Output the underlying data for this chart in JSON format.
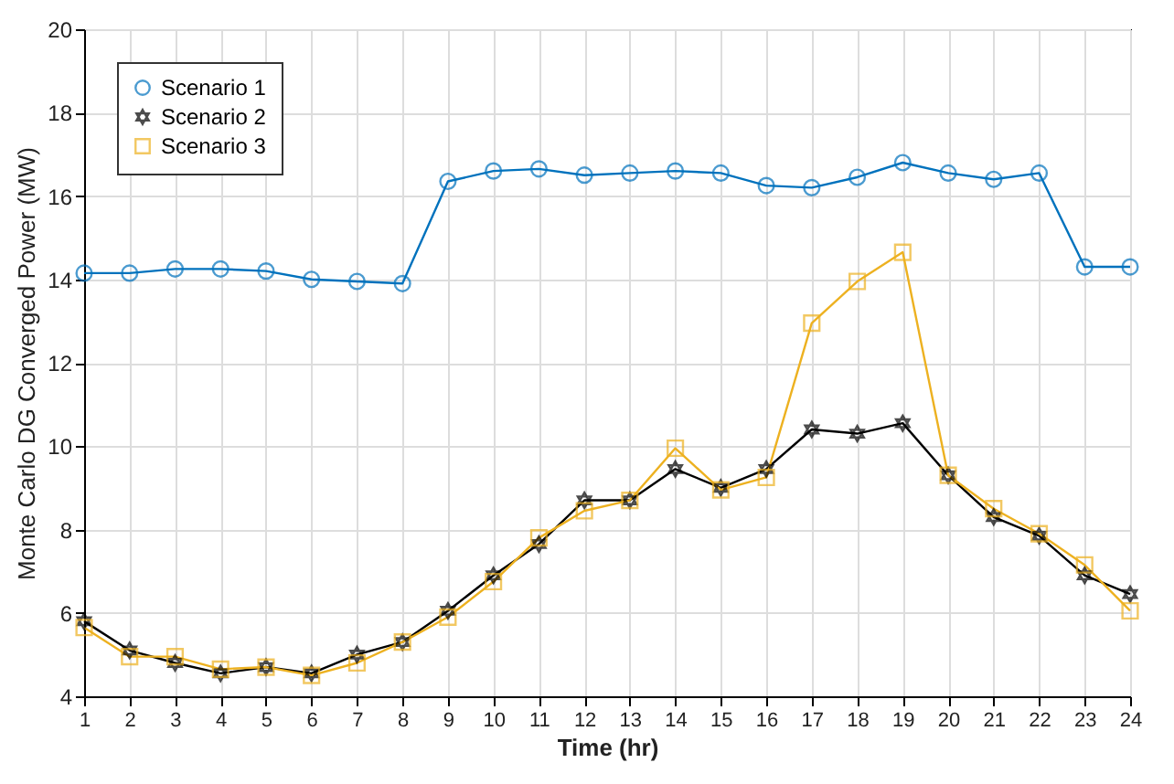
{
  "chart_data": {
    "type": "line",
    "xlabel": "Time (hr)",
    "ylabel": "Monte Carlo DG Converged Power (MW)",
    "x": [
      1,
      2,
      3,
      4,
      5,
      6,
      7,
      8,
      9,
      10,
      11,
      12,
      13,
      14,
      15,
      16,
      17,
      18,
      19,
      20,
      21,
      22,
      23,
      24
    ],
    "xlim": [
      1,
      24
    ],
    "xticks": [
      1,
      2,
      3,
      4,
      5,
      6,
      7,
      8,
      9,
      10,
      11,
      12,
      13,
      14,
      15,
      16,
      17,
      18,
      19,
      20,
      21,
      22,
      23,
      24
    ],
    "ylim": [
      4,
      20
    ],
    "yticks": [
      4,
      6,
      8,
      10,
      12,
      14,
      16,
      18,
      20
    ],
    "grid": true,
    "legend": "top left",
    "series": [
      {
        "name": "Scenario 1",
        "color": "#0072bd",
        "marker": "circle",
        "values": [
          14.15,
          14.15,
          14.25,
          14.25,
          14.2,
          14.0,
          13.95,
          13.9,
          16.35,
          16.6,
          16.65,
          16.5,
          16.55,
          16.6,
          16.55,
          16.25,
          16.2,
          16.45,
          16.8,
          16.55,
          16.4,
          16.55,
          14.3,
          14.3
        ]
      },
      {
        "name": "Scenario 2",
        "color": "#000000",
        "marker": "star",
        "values": [
          5.8,
          5.1,
          4.8,
          4.55,
          4.7,
          4.55,
          5.0,
          5.3,
          6.05,
          6.9,
          7.65,
          8.7,
          8.7,
          9.45,
          9.0,
          9.45,
          10.4,
          10.3,
          10.55,
          9.3,
          8.3,
          7.85,
          6.9,
          6.45
        ]
      },
      {
        "name": "Scenario 3",
        "color": "#edb120",
        "marker": "square",
        "values": [
          5.65,
          4.95,
          4.95,
          4.65,
          4.7,
          4.5,
          4.8,
          5.3,
          5.9,
          6.75,
          7.8,
          8.45,
          8.7,
          9.95,
          8.95,
          9.25,
          12.95,
          13.95,
          14.65,
          9.3,
          8.5,
          7.9,
          7.15,
          6.05
        ]
      }
    ]
  }
}
